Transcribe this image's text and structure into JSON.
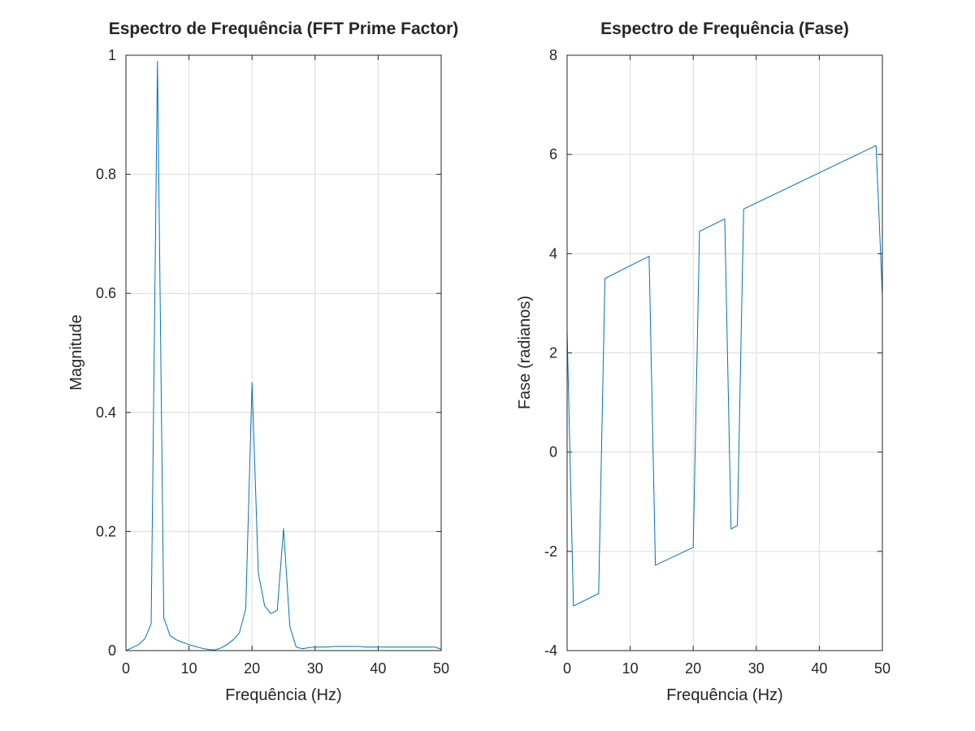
{
  "colors": {
    "series": "#0072bd",
    "grid": "#dcdcdc",
    "axes": "#262626",
    "background": "#ffffff"
  },
  "chart_data": [
    {
      "type": "line",
      "title": "Espectro de Frequência (FFT Prime Factor)",
      "xlabel": "Frequência (Hz)",
      "ylabel": "Magnitude",
      "xlim": [
        0,
        50
      ],
      "ylim": [
        0,
        1
      ],
      "xticks": [
        0,
        10,
        20,
        30,
        40,
        50
      ],
      "yticks": [
        0,
        0.2,
        0.4,
        0.6,
        0.8,
        1
      ],
      "xtick_labels": [
        "0",
        "10",
        "20",
        "30",
        "40",
        "50"
      ],
      "ytick_labels": [
        "0",
        "0.2",
        "0.4",
        "0.6",
        "0.8",
        "1"
      ],
      "grid": true,
      "series": [
        {
          "color": "#0072bd",
          "x": [
            0,
            1,
            2,
            3,
            4,
            5,
            6,
            7,
            8,
            9,
            10,
            11,
            12,
            13,
            14,
            15,
            16,
            17,
            18,
            19,
            20,
            21,
            22,
            23,
            24,
            25,
            26,
            27,
            28,
            29,
            30,
            31,
            32,
            33,
            34,
            35,
            36,
            37,
            38,
            39,
            40,
            41,
            42,
            43,
            44,
            45,
            46,
            47,
            48,
            49,
            50
          ],
          "y": [
            0.0,
            0.005,
            0.01,
            0.02,
            0.045,
            0.99,
            0.055,
            0.025,
            0.018,
            0.014,
            0.01,
            0.007,
            0.004,
            0.002,
            0.001,
            0.004,
            0.01,
            0.018,
            0.03,
            0.07,
            0.45,
            0.13,
            0.075,
            0.062,
            0.068,
            0.205,
            0.04,
            0.006,
            0.003,
            0.005,
            0.006,
            0.006,
            0.006,
            0.007,
            0.007,
            0.007,
            0.007,
            0.007,
            0.006,
            0.006,
            0.006,
            0.006,
            0.006,
            0.006,
            0.006,
            0.006,
            0.006,
            0.006,
            0.006,
            0.006,
            0.002
          ]
        }
      ]
    },
    {
      "type": "line",
      "title": "Espectro de Frequência (Fase)",
      "xlabel": "Frequência (Hz)",
      "ylabel": "Fase (radianos)",
      "xlim": [
        0,
        50
      ],
      "ylim": [
        -4,
        8
      ],
      "xticks": [
        0,
        10,
        20,
        30,
        40,
        50
      ],
      "yticks": [
        -4,
        -2,
        0,
        2,
        4,
        6,
        8
      ],
      "xtick_labels": [
        "0",
        "10",
        "20",
        "30",
        "40",
        "50"
      ],
      "ytick_labels": [
        "-4",
        "-2",
        "0",
        "2",
        "4",
        "6",
        "8"
      ],
      "grid": true,
      "series": [
        {
          "color": "#0072bd",
          "x": [
            0,
            1,
            5,
            6,
            13,
            14,
            20,
            21,
            25,
            26,
            27,
            28,
            49,
            50
          ],
          "y": [
            2.45,
            -3.1,
            -2.85,
            3.5,
            3.95,
            -2.28,
            -1.92,
            4.45,
            4.7,
            -1.55,
            -1.48,
            4.9,
            6.18,
            3.14
          ]
        }
      ]
    }
  ]
}
